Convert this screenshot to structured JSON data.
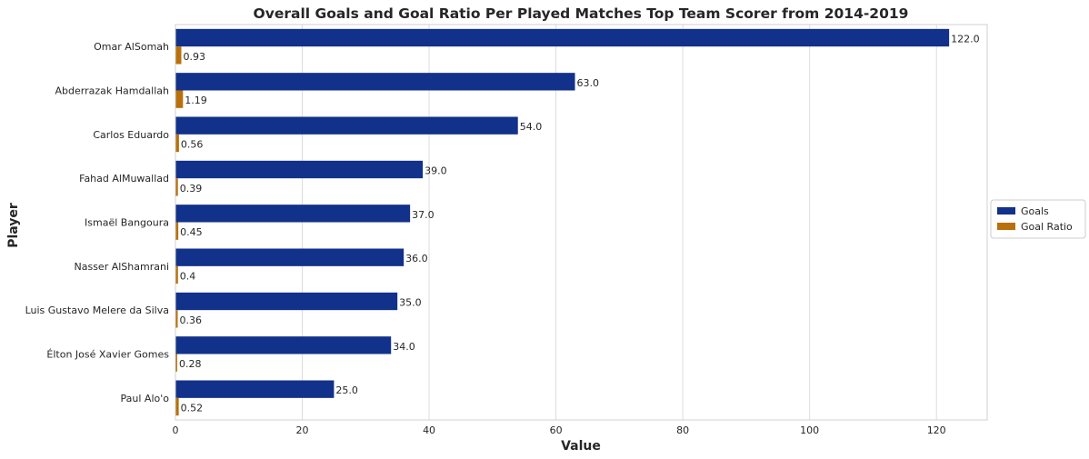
{
  "chart_data": {
    "type": "bar",
    "orientation": "horizontal",
    "title": "Overall Goals and Goal Ratio Per Played Matches Top Team Scorer from 2014-2019",
    "xlabel": "Value",
    "ylabel": "Player",
    "xlim": [
      0,
      128
    ],
    "xticks": [
      "0",
      "20",
      "40",
      "60",
      "80",
      "100",
      "120"
    ],
    "grid": true,
    "legend_position": "right",
    "categories": [
      "Omar AlSomah",
      "Abderrazak Hamdallah",
      "Carlos Eduardo",
      "Fahad AlMuwallad",
      "Ismaël Bangoura",
      "Nasser AlShamrani",
      "Luis Gustavo Melere da Silva",
      "Élton José Xavier Gomes",
      "Paul Alo'o"
    ],
    "series": [
      {
        "name": "Goals",
        "color": "#12318a",
        "values": [
          122.0,
          63.0,
          54.0,
          39.0,
          37.0,
          36.0,
          35.0,
          34.0,
          25.0
        ],
        "labels": [
          "122.0",
          "63.0",
          "54.0",
          "39.0",
          "37.0",
          "36.0",
          "35.0",
          "34.0",
          "25.0"
        ]
      },
      {
        "name": "Goal Ratio",
        "color": "#b8700c",
        "values": [
          0.93,
          1.19,
          0.56,
          0.39,
          0.45,
          0.4,
          0.36,
          0.28,
          0.52
        ],
        "labels": [
          "0.93",
          "1.19",
          "0.56",
          "0.39",
          "0.45",
          "0.4",
          "0.36",
          "0.28",
          "0.52"
        ]
      }
    ]
  }
}
